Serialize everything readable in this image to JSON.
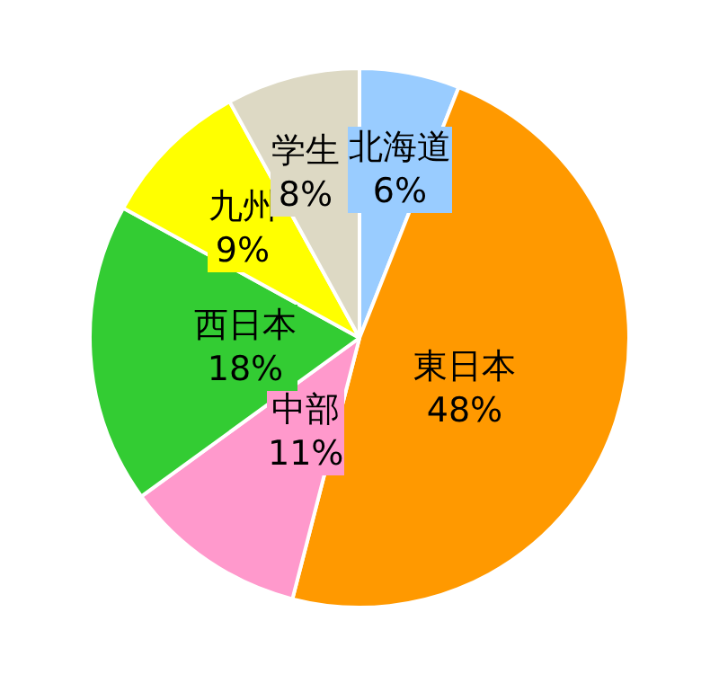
{
  "chart_data": {
    "type": "pie",
    "categories": [
      "北海道",
      "東日本",
      "中部",
      "西日本",
      "九州",
      "学生"
    ],
    "values": [
      6,
      48,
      11,
      18,
      9,
      8
    ],
    "value_labels": [
      "6%",
      "48%",
      "11%",
      "18%",
      "9%",
      "8%"
    ],
    "colors": [
      "#99ccff",
      "#ff9900",
      "#ff99cc",
      "#33cc33",
      "#ffff00",
      "#ddd9c4"
    ],
    "legend": false
  }
}
